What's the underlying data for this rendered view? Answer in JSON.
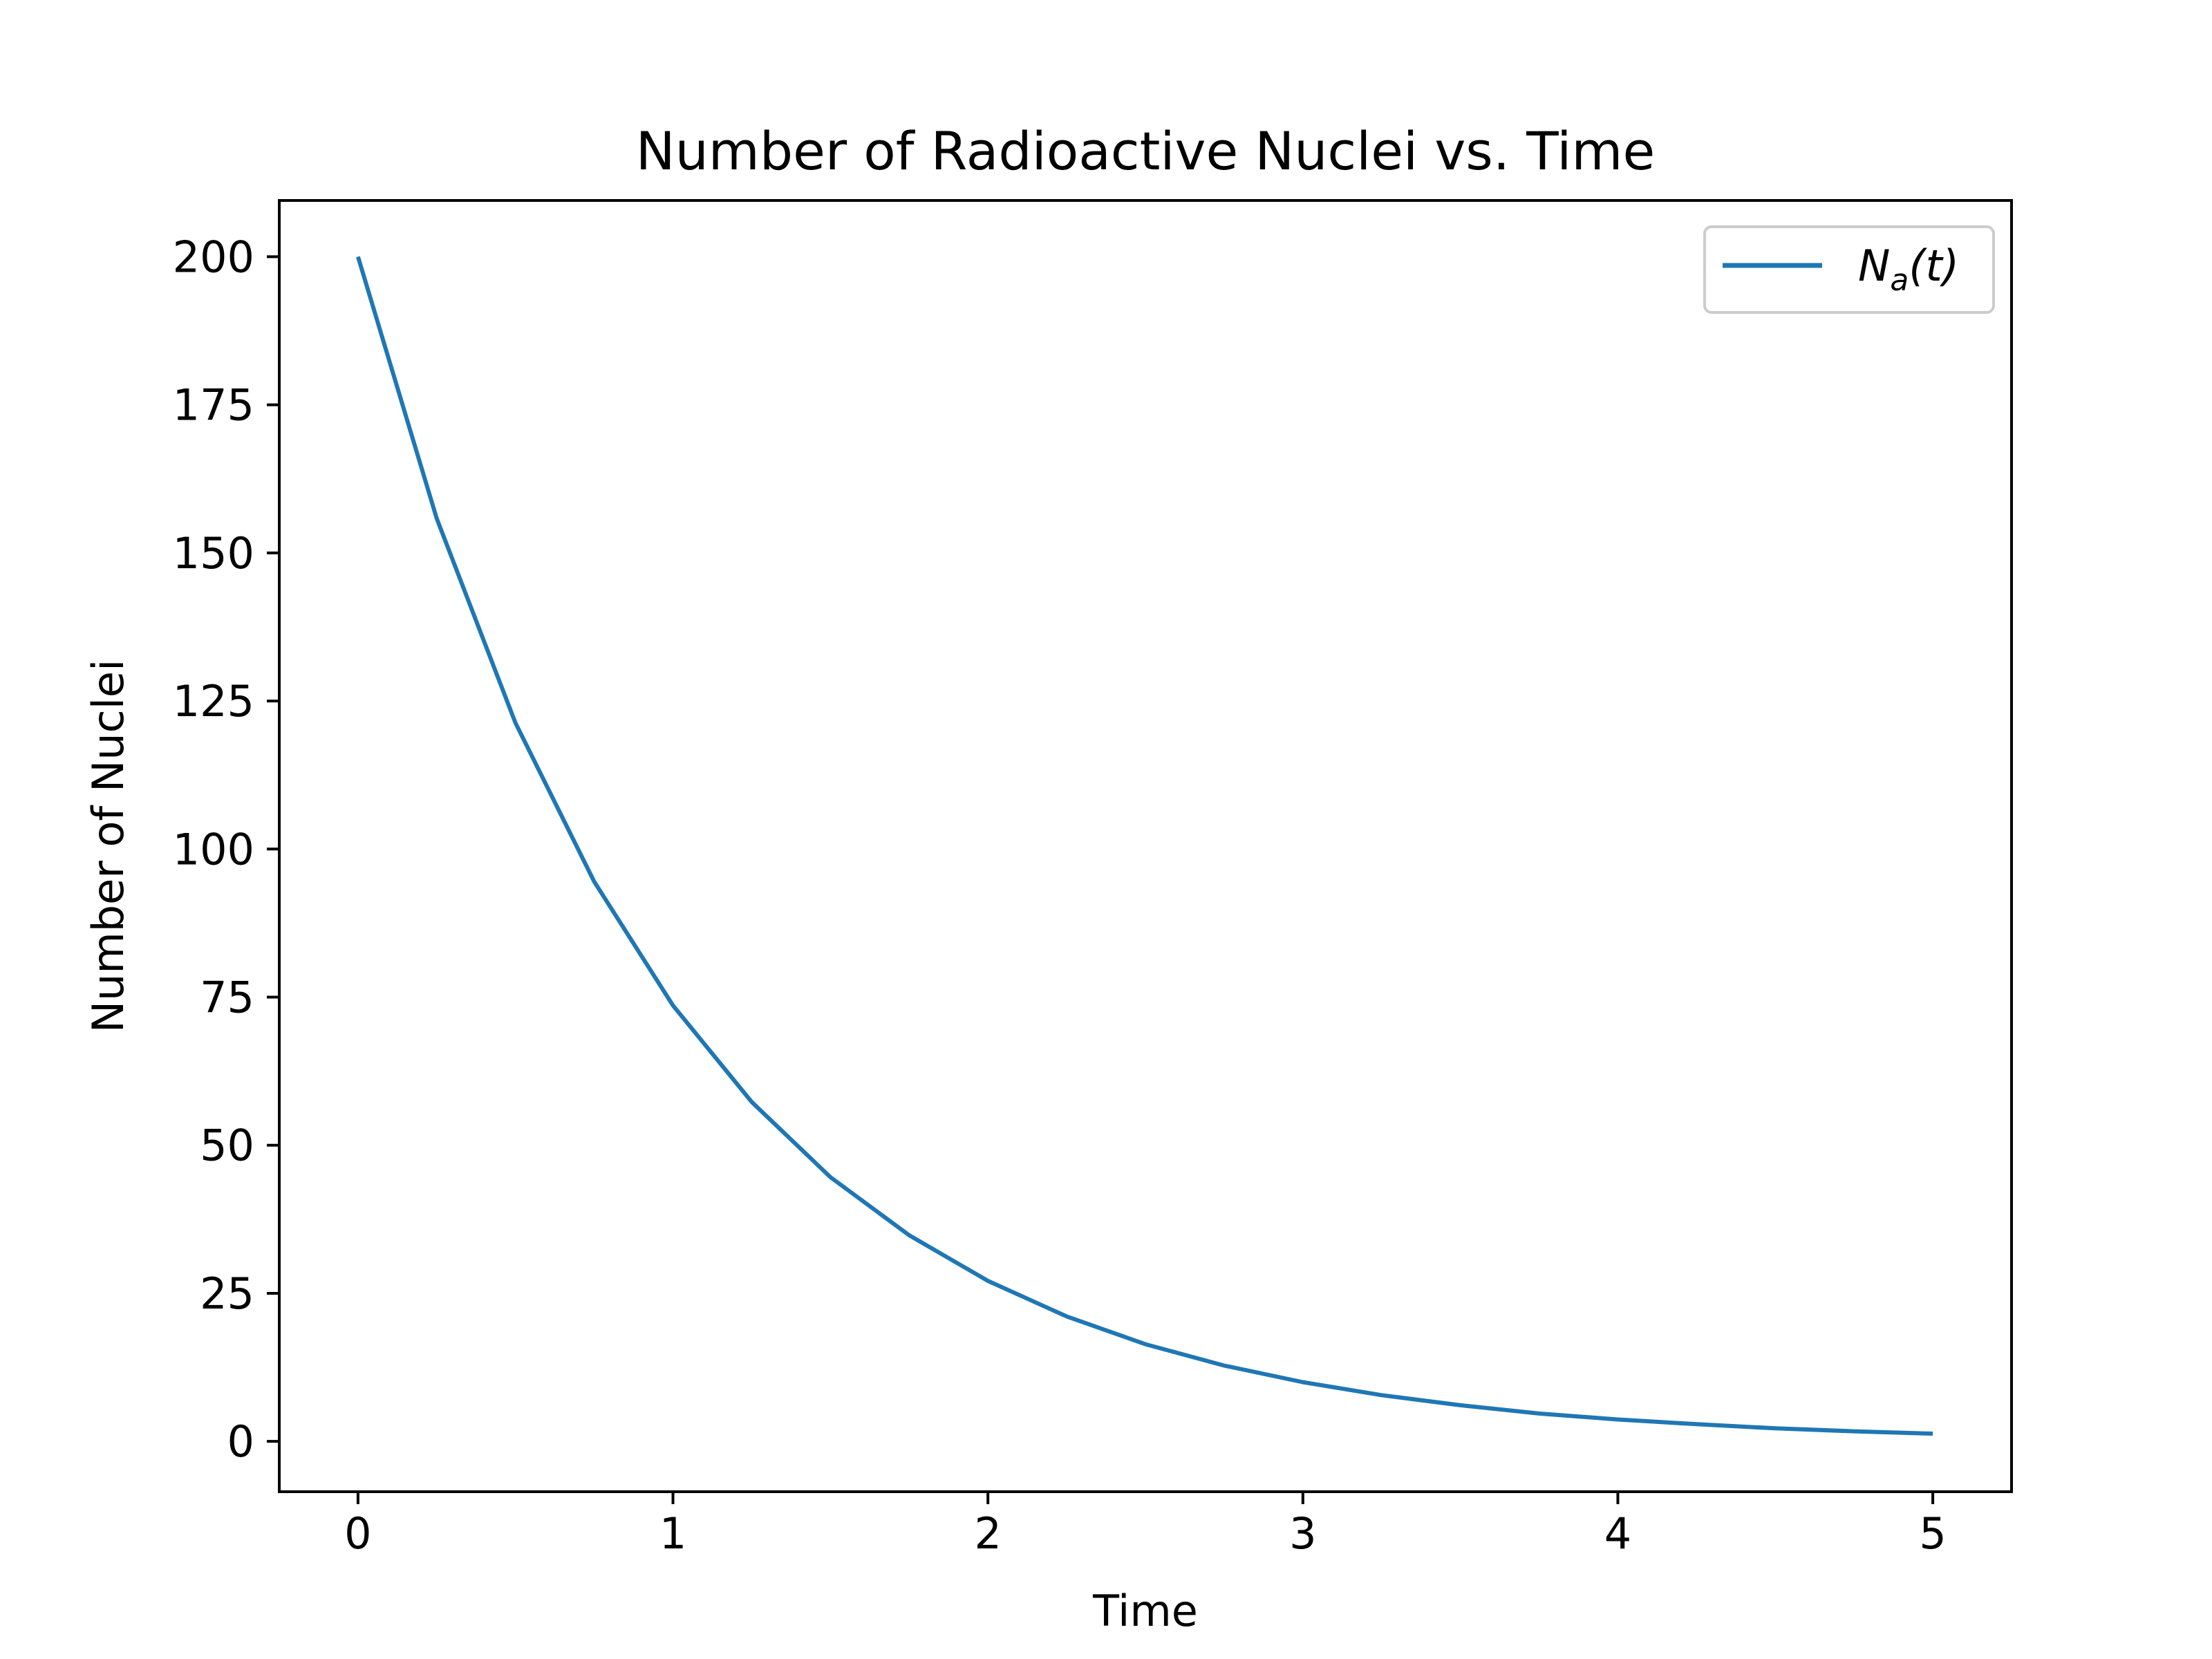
{
  "chart_data": {
    "type": "line",
    "title": "Number of Radioactive Nuclei vs. Time",
    "xlabel": "Time",
    "ylabel": "Number of Nuclei",
    "xlim": [
      -0.25,
      5.25
    ],
    "ylim": [
      -8.5,
      209.5
    ],
    "xticks": [
      0,
      1,
      2,
      3,
      4,
      5
    ],
    "xtick_labels": [
      "0",
      "1",
      "2",
      "3",
      "4",
      "5"
    ],
    "yticks": [
      0,
      25,
      50,
      75,
      100,
      125,
      150,
      175,
      200
    ],
    "ytick_labels": [
      "0",
      "25",
      "50",
      "75",
      "100",
      "125",
      "150",
      "175",
      "200"
    ],
    "grid": false,
    "legend_position": "top-right",
    "series": [
      {
        "name": "N_a(t)",
        "legend": {
          "main": "N",
          "sub": "a",
          "rest": "(t)"
        },
        "color": "#1f77b4",
        "x": [
          0,
          0.25,
          0.5,
          0.75,
          1,
          1.25,
          1.5,
          1.75,
          2,
          2.25,
          2.5,
          2.75,
          3,
          3.25,
          3.5,
          3.75,
          4,
          4.25,
          4.5,
          4.75,
          5
        ],
        "y": [
          200,
          155.8,
          121.3,
          94.5,
          73.6,
          57.3,
          44.6,
          34.8,
          27.1,
          21.1,
          16.4,
          12.8,
          10.0,
          7.8,
          6.1,
          4.7,
          3.7,
          2.9,
          2.2,
          1.7,
          1.3
        ]
      }
    ]
  }
}
